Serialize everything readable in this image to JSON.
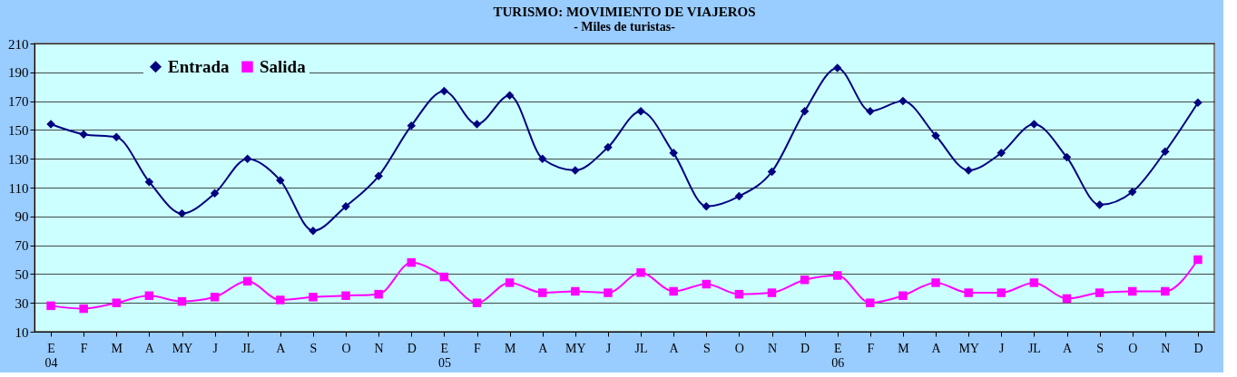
{
  "chart_data": {
    "type": "line",
    "title": "TURISMO: MOVIMIENTO DE VIAJEROS",
    "subtitle": "- Miles de turistas-",
    "categories": [
      "E\n04",
      "F",
      "M",
      "A",
      "MY",
      "J",
      "JL",
      "A",
      "S",
      "O",
      "N",
      "D",
      "E\n05",
      "F",
      "M",
      "A",
      "MY",
      "J",
      "JL",
      "A",
      "S",
      "O",
      "N",
      "D",
      "E\n06",
      "F",
      "M",
      "A",
      "MY",
      "J",
      "JL",
      "A",
      "S",
      "O",
      "N",
      "D"
    ],
    "series": [
      {
        "name": "Entrada",
        "color": "#000080",
        "marker": "diamond",
        "values": [
          154,
          147,
          145,
          114,
          92,
          106,
          130,
          115,
          80,
          97,
          118,
          153,
          177,
          154,
          174,
          130,
          122,
          138,
          163,
          134,
          97,
          104,
          121,
          163,
          193,
          163,
          170,
          146,
          122,
          134,
          154,
          131,
          98,
          107,
          135,
          169
        ]
      },
      {
        "name": "Salida",
        "color": "#ff00ff",
        "marker": "square",
        "values": [
          28,
          26,
          30,
          35,
          31,
          34,
          45,
          32,
          34,
          35,
          36,
          58,
          48,
          30,
          44,
          37,
          38,
          37,
          51,
          38,
          43,
          36,
          37,
          46,
          49,
          30,
          35,
          44,
          37,
          37,
          44,
          33,
          37,
          38,
          38,
          60
        ]
      }
    ],
    "ylim": [
      10,
      210
    ],
    "yticks": [
      10,
      30,
      50,
      70,
      90,
      110,
      130,
      150,
      170,
      190,
      210
    ],
    "grid": "y",
    "legend": "top left",
    "line_style": "solid"
  }
}
